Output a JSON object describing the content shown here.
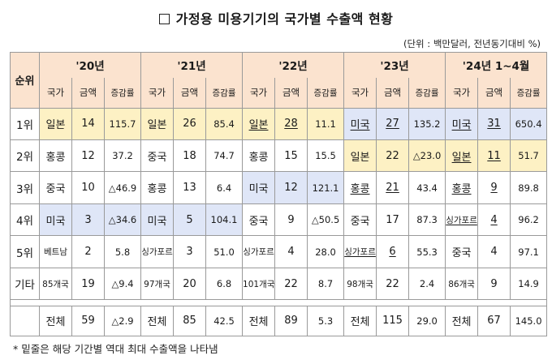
{
  "title": "가정용 미용기기의 국가별 수출액 현황",
  "unit_note": "(단위 : 백만달러, 전년동기대비 %)",
  "header": {
    "rank": "순위",
    "years": [
      "'20년",
      "'21년",
      "'22년",
      "'23년",
      "'24년 1~4월"
    ],
    "country": "국가",
    "amount": "금액",
    "growth": "증감률"
  },
  "rows": [
    {
      "rank": "1위",
      "cells": [
        {
          "c": "일본",
          "a": "14",
          "g": "115.7",
          "bg": "yellow",
          "ul": false
        },
        {
          "c": "일본",
          "a": "26",
          "g": "85.4",
          "bg": "yellow",
          "ul": false
        },
        {
          "c": "일본",
          "a": "28",
          "g": "11.1",
          "bg": "yellow",
          "ul": true
        },
        {
          "c": "미국",
          "a": "27",
          "g": "135.2",
          "bg": "blue",
          "ul": true
        },
        {
          "c": "미국",
          "a": "31",
          "g": "650.4",
          "bg": "blue",
          "ul": true
        }
      ]
    },
    {
      "rank": "2위",
      "cells": [
        {
          "c": "홍콩",
          "a": "12",
          "g": "37.2",
          "bg": "",
          "ul": false
        },
        {
          "c": "중국",
          "a": "18",
          "g": "74.7",
          "bg": "",
          "ul": false
        },
        {
          "c": "홍콩",
          "a": "15",
          "g": "15.5",
          "bg": "",
          "ul": false
        },
        {
          "c": "일본",
          "a": "22",
          "g": "△23.0",
          "bg": "yellow",
          "ul": false
        },
        {
          "c": "일본",
          "a": "11",
          "g": "51.7",
          "bg": "yellow",
          "ul": true
        }
      ]
    },
    {
      "rank": "3위",
      "cells": [
        {
          "c": "중국",
          "a": "10",
          "g": "△46.9",
          "bg": "",
          "ul": false
        },
        {
          "c": "홍콩",
          "a": "13",
          "g": "6.4",
          "bg": "",
          "ul": false
        },
        {
          "c": "미국",
          "a": "12",
          "g": "121.1",
          "bg": "blue",
          "ul": false
        },
        {
          "c": "홍콩",
          "a": "21",
          "g": "43.4",
          "bg": "",
          "ul": true
        },
        {
          "c": "홍콩",
          "a": "9",
          "g": "89.8",
          "bg": "",
          "ul": true
        }
      ]
    },
    {
      "rank": "4위",
      "cells": [
        {
          "c": "미국",
          "a": "3",
          "g": "△34.6",
          "bg": "blue",
          "ul": false
        },
        {
          "c": "미국",
          "a": "5",
          "g": "104.1",
          "bg": "blue",
          "ul": false
        },
        {
          "c": "중국",
          "a": "9",
          "g": "△50.5",
          "bg": "",
          "ul": false
        },
        {
          "c": "중국",
          "a": "17",
          "g": "87.3",
          "bg": "",
          "ul": false
        },
        {
          "c": "싱가포르",
          "a": "4",
          "g": "96.2",
          "bg": "",
          "ul": true,
          "sm": true
        }
      ]
    },
    {
      "rank": "5위",
      "cells": [
        {
          "c": "베트남",
          "a": "2",
          "g": "5.8",
          "bg": "",
          "ul": false,
          "sm": true
        },
        {
          "c": "싱가포르",
          "a": "3",
          "g": "51.0",
          "bg": "",
          "ul": false,
          "sm": true
        },
        {
          "c": "싱가포르",
          "a": "4",
          "g": "28.0",
          "bg": "",
          "ul": false,
          "sm": true
        },
        {
          "c": "싱가포르",
          "a": "6",
          "g": "55.3",
          "bg": "",
          "ul": true,
          "sm": true
        },
        {
          "c": "중국",
          "a": "4",
          "g": "97.1",
          "bg": "",
          "ul": false
        }
      ]
    },
    {
      "rank": "기타",
      "cells": [
        {
          "c": "85개국",
          "a": "19",
          "g": "△9.4",
          "bg": "",
          "ul": false,
          "sm": true
        },
        {
          "c": "97개국",
          "a": "20",
          "g": "6.8",
          "bg": "",
          "ul": false,
          "sm": true
        },
        {
          "c": "101개국",
          "a": "22",
          "g": "8.7",
          "bg": "",
          "ul": false,
          "sm": true
        },
        {
          "c": "98개국",
          "a": "22",
          "g": "2.4",
          "bg": "",
          "ul": false,
          "sm": true
        },
        {
          "c": "86개국",
          "a": "9",
          "g": "14.9",
          "bg": "",
          "ul": false,
          "sm": true
        }
      ]
    }
  ],
  "total": {
    "label": "전체",
    "cells": [
      {
        "a": "59",
        "g": "△2.9"
      },
      {
        "a": "85",
        "g": "42.5"
      },
      {
        "a": "89",
        "g": "5.3"
      },
      {
        "a": "115",
        "g": "29.0"
      },
      {
        "a": "67",
        "g": "145.0"
      }
    ]
  },
  "footnote": "* 밑줄은 해당 기간별 역대 최대 수출액을 나타냄",
  "colors": {
    "header": "#fbe3cf",
    "yellow": "#fdf1c4",
    "blue": "#dfe6f7"
  }
}
